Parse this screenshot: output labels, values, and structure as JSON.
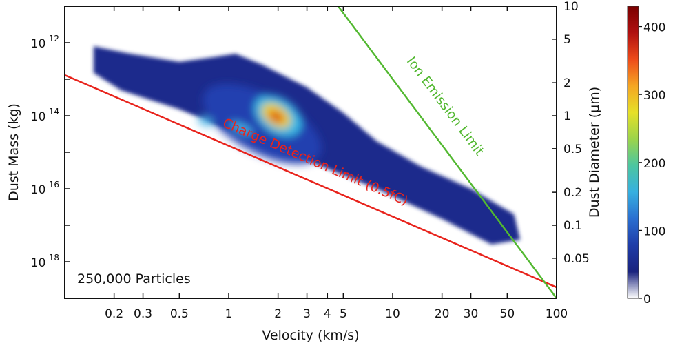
{
  "chart_data": {
    "type": "heatmap",
    "xlabel": "Velocity (km/s)",
    "ylabel": "Dust Mass (kg)",
    "y2label": "Dust Diameter (μm)",
    "x_scale": "log",
    "y_scale": "log",
    "xlim": [
      0.1,
      100
    ],
    "ylim": [
      1e-19,
      1e-11
    ],
    "x_ticks": [
      {
        "value": 0.2,
        "label": "0.2"
      },
      {
        "value": 0.3,
        "label": "0.3"
      },
      {
        "value": 0.5,
        "label": "0.5"
      },
      {
        "value": 1,
        "label": "1"
      },
      {
        "value": 2,
        "label": "2"
      },
      {
        "value": 3,
        "label": "3"
      },
      {
        "value": 4,
        "label": "4"
      },
      {
        "value": 5,
        "label": "5"
      },
      {
        "value": 10,
        "label": "10"
      },
      {
        "value": 20,
        "label": "20"
      },
      {
        "value": 30,
        "label": "30"
      },
      {
        "value": 50,
        "label": "50"
      },
      {
        "value": 100,
        "label": "100"
      }
    ],
    "y_ticks": [
      {
        "exp": -12,
        "base": "10",
        "sup": "-12"
      },
      {
        "exp": -14,
        "base": "10",
        "sup": "-14"
      },
      {
        "exp": -16,
        "base": "10",
        "sup": "-16"
      },
      {
        "exp": -18,
        "base": "10",
        "sup": "-18"
      }
    ],
    "y2_ticks": [
      {
        "value": 10,
        "label": "10"
      },
      {
        "value": 5,
        "label": "5"
      },
      {
        "value": 2,
        "label": "2"
      },
      {
        "value": 1,
        "label": "1"
      },
      {
        "value": 0.5,
        "label": "0.5"
      },
      {
        "value": 0.2,
        "label": "0.2"
      },
      {
        "value": 0.1,
        "label": "0.1"
      },
      {
        "value": 0.05,
        "label": "0.05"
      }
    ],
    "colorbar": {
      "min": 0,
      "max": 430,
      "ticks": [
        {
          "value": 0,
          "label": "0"
        },
        {
          "value": 100,
          "label": "100"
        },
        {
          "value": 200,
          "label": "200"
        },
        {
          "value": 300,
          "label": "300"
        },
        {
          "value": 400,
          "label": "400"
        }
      ],
      "colors": [
        "#ffffff",
        "#1a237e",
        "#1e3ca8",
        "#2a6fd1",
        "#36b0e0",
        "#4cc6a0",
        "#9bd44a",
        "#e6e028",
        "#f5a623",
        "#ee4b1a",
        "#b01010",
        "#7a0000"
      ]
    },
    "limit_lines": [
      {
        "name": "Charge Detection Limit (0.5fC)",
        "color": "#e8231c",
        "points": [
          [
            0.1,
            1.3e-13
          ],
          [
            100,
            2e-19
          ]
        ]
      },
      {
        "name": "Ion Emission Limit",
        "color": "#52b830",
        "points": [
          [
            4.65,
            1e-11
          ],
          [
            100,
            1e-19
          ]
        ]
      }
    ],
    "density_peak": {
      "velocity": 2.0,
      "mass": 1e-14,
      "count": 430
    },
    "annotation": "250,000 Particles"
  }
}
